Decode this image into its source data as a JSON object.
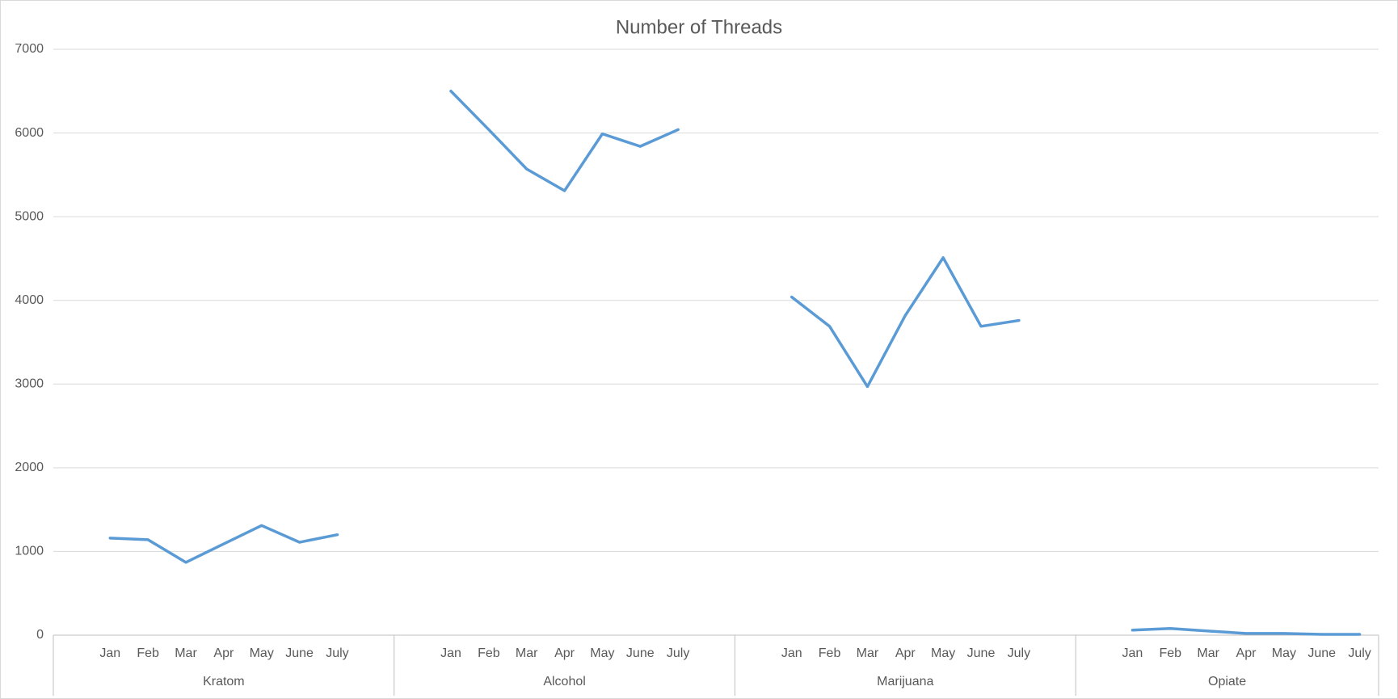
{
  "chart_data": {
    "type": "line",
    "title": "Number of Threads",
    "color": "#5b9bd5",
    "ylim": [
      0,
      7000
    ],
    "yticks": [
      0,
      1000,
      2000,
      3000,
      4000,
      5000,
      6000,
      7000
    ],
    "grid": true,
    "groups": [
      {
        "name": "Kratom",
        "categories": [
          null,
          "Jan",
          "Feb",
          "Mar",
          "Apr",
          "May",
          "June",
          "July",
          null
        ],
        "values": [
          null,
          1160,
          1140,
          870,
          1090,
          1310,
          1110,
          1200,
          null
        ]
      },
      {
        "name": "Alcohol",
        "categories": [
          null,
          "Jan",
          "Feb",
          "Mar",
          "Apr",
          "May",
          "June",
          "July",
          null
        ],
        "values": [
          null,
          6500,
          6040,
          5570,
          5310,
          5990,
          5840,
          6040,
          null
        ]
      },
      {
        "name": "Marijuana",
        "categories": [
          null,
          "Jan",
          "Feb",
          "Mar",
          "Apr",
          "May",
          "June",
          "July",
          null
        ],
        "values": [
          null,
          4040,
          3690,
          2970,
          3820,
          4510,
          3690,
          3760,
          null
        ]
      },
      {
        "name": "Opiate",
        "categories": [
          null,
          "Jan",
          "Feb",
          "Mar",
          "Apr",
          "May",
          "June",
          "July"
        ],
        "values": [
          null,
          60,
          80,
          50,
          20,
          20,
          10,
          10
        ]
      }
    ]
  }
}
